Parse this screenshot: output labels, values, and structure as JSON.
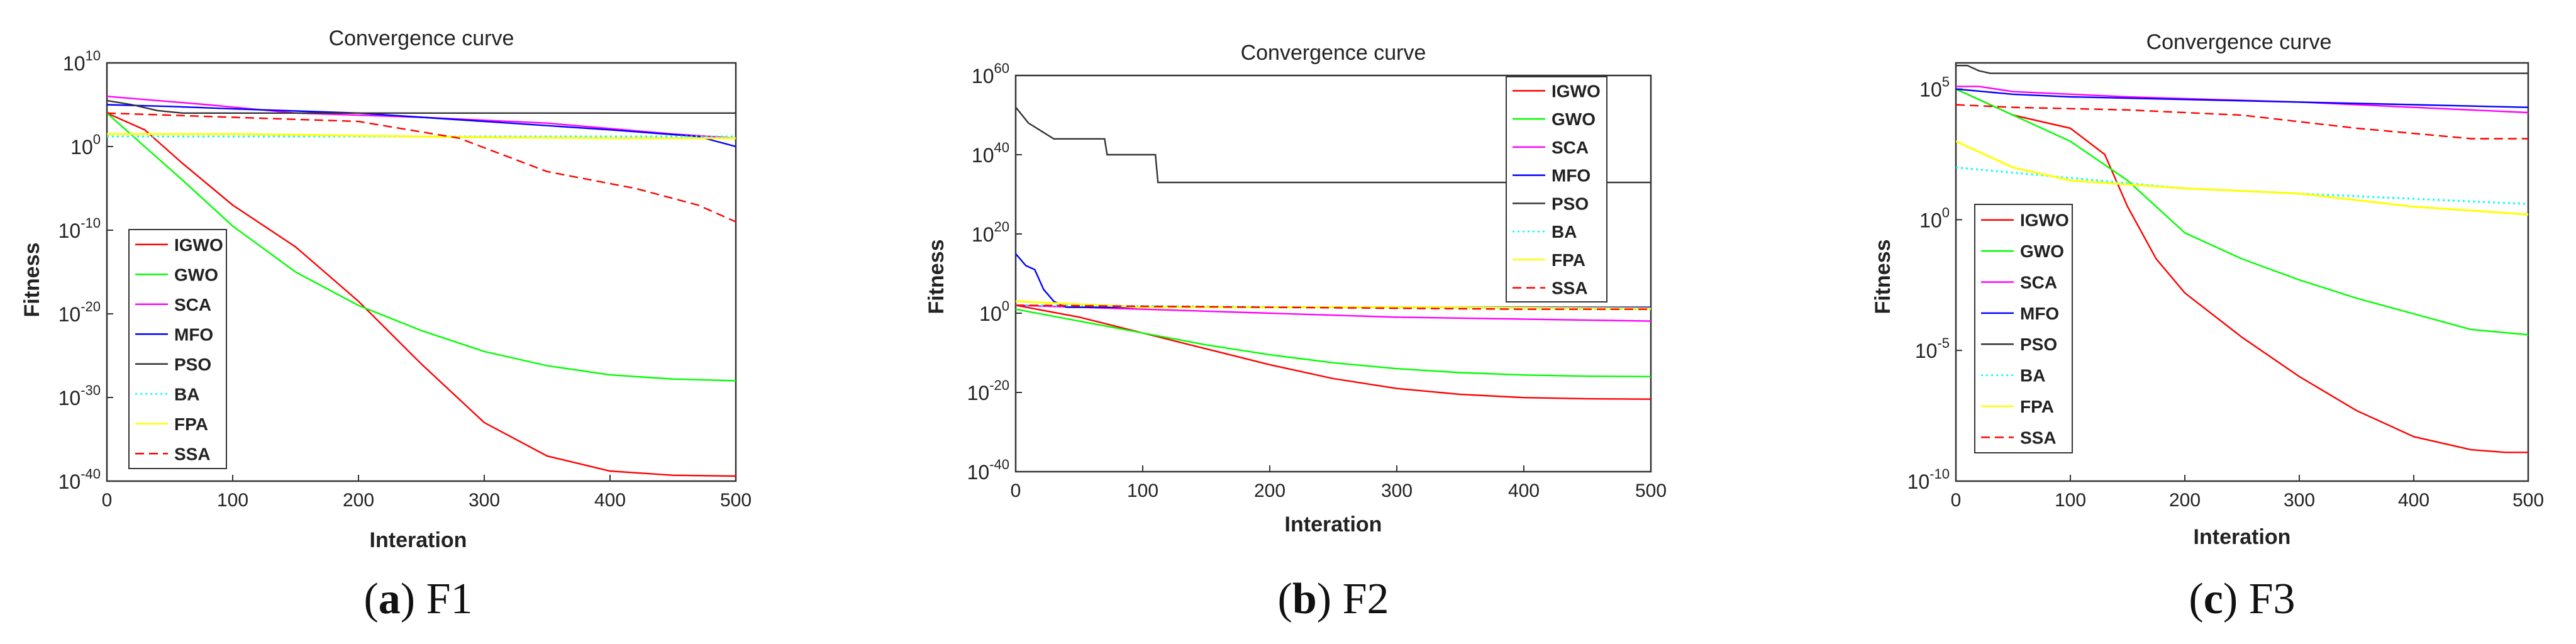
{
  "colors": {
    "IGWO": "#ff0000",
    "GWO": "#00ff00",
    "SCA": "#ff00ff",
    "MFO": "#0000ff",
    "PSO": "#333333",
    "BA": "#00ffff",
    "FPA": "#ffff00",
    "SSA": "#ff0000"
  },
  "chart_data": [
    {
      "type": "line",
      "title": "Convergence curve",
      "xlabel": "Interation",
      "ylabel": "Fitness",
      "yscale": "log",
      "xlim": [
        0,
        500
      ],
      "ylim_exp": [
        -40,
        10
      ],
      "xticks": [
        0,
        100,
        200,
        300,
        400,
        500
      ],
      "yticks_exp": [
        -40,
        -30,
        -20,
        -10,
        0,
        10
      ],
      "caption": {
        "letter": "a",
        "func": "F1"
      },
      "legend": [
        "IGWO",
        "GWO",
        "SCA",
        "MFO",
        "PSO",
        "BA",
        "FPA",
        "SSA"
      ],
      "legend_position": "lower-left",
      "series": [
        {
          "name": "IGWO",
          "style": "solid",
          "points": [
            [
              0,
              4
            ],
            [
              30,
              2
            ],
            [
              60,
              -2
            ],
            [
              100,
              -7
            ],
            [
              150,
              -12
            ],
            [
              200,
              -18.5
            ],
            [
              250,
              -26
            ],
            [
              300,
              -33
            ],
            [
              350,
              -37
            ],
            [
              400,
              -38.8
            ],
            [
              450,
              -39.3
            ],
            [
              500,
              -39.4
            ]
          ]
        },
        {
          "name": "GWO",
          "style": "solid",
          "points": [
            [
              0,
              4
            ],
            [
              30,
              0
            ],
            [
              60,
              -4
            ],
            [
              100,
              -9.5
            ],
            [
              150,
              -15
            ],
            [
              200,
              -19
            ],
            [
              250,
              -22
            ],
            [
              300,
              -24.5
            ],
            [
              350,
              -26.2
            ],
            [
              400,
              -27.3
            ],
            [
              450,
              -27.8
            ],
            [
              500,
              -28
            ]
          ]
        },
        {
          "name": "SCA",
          "style": "solid",
          "points": [
            [
              0,
              6
            ],
            [
              40,
              5.5
            ],
            [
              80,
              5
            ],
            [
              150,
              4
            ],
            [
              250,
              3.5
            ],
            [
              350,
              2.8
            ],
            [
              450,
              1.5
            ],
            [
              500,
              1
            ]
          ]
        },
        {
          "name": "MFO",
          "style": "solid",
          "points": [
            [
              0,
              5
            ],
            [
              50,
              4.8
            ],
            [
              100,
              4.5
            ],
            [
              200,
              4
            ],
            [
              300,
              3
            ],
            [
              400,
              2
            ],
            [
              470,
              1.2
            ],
            [
              500,
              0
            ]
          ]
        },
        {
          "name": "PSO",
          "style": "solid",
          "points": [
            [
              0,
              5.5
            ],
            [
              20,
              5
            ],
            [
              40,
              4.3
            ],
            [
              60,
              4
            ],
            [
              100,
              4
            ],
            [
              500,
              4
            ]
          ]
        },
        {
          "name": "BA",
          "style": "dotted",
          "points": [
            [
              0,
              1.2
            ],
            [
              500,
              1.2
            ]
          ]
        },
        {
          "name": "FPA",
          "style": "solid",
          "points": [
            [
              0,
              1.5
            ],
            [
              100,
              1.5
            ],
            [
              200,
              1.3
            ],
            [
              300,
              1.1
            ],
            [
              400,
              1
            ],
            [
              500,
              1
            ]
          ]
        },
        {
          "name": "SSA",
          "style": "dashed",
          "points": [
            [
              0,
              4
            ],
            [
              100,
              3.5
            ],
            [
              200,
              3
            ],
            [
              280,
              1
            ],
            [
              350,
              -3
            ],
            [
              420,
              -5
            ],
            [
              470,
              -7
            ],
            [
              500,
              -9
            ]
          ]
        }
      ]
    },
    {
      "type": "line",
      "title": "Convergence curve",
      "xlabel": "Interation",
      "ylabel": "Fitness",
      "yscale": "log",
      "xlim": [
        0,
        500
      ],
      "ylim_exp": [
        -40,
        60
      ],
      "xticks": [
        0,
        100,
        200,
        300,
        400,
        500
      ],
      "yticks_exp": [
        -40,
        -20,
        0,
        20,
        40,
        60
      ],
      "caption": {
        "letter": "b",
        "func": "F2"
      },
      "legend": [
        "IGWO",
        "GWO",
        "SCA",
        "MFO",
        "PSO",
        "BA",
        "FPA",
        "SSA"
      ],
      "legend_position": "top-right",
      "series": [
        {
          "name": "IGWO",
          "style": "solid",
          "points": [
            [
              0,
              2
            ],
            [
              50,
              -1
            ],
            [
              100,
              -5
            ],
            [
              150,
              -9
            ],
            [
              200,
              -13
            ],
            [
              250,
              -16.5
            ],
            [
              300,
              -19
            ],
            [
              350,
              -20.5
            ],
            [
              400,
              -21.3
            ],
            [
              450,
              -21.6
            ],
            [
              500,
              -21.7
            ]
          ]
        },
        {
          "name": "GWO",
          "style": "solid",
          "points": [
            [
              0,
              1
            ],
            [
              50,
              -2
            ],
            [
              100,
              -5
            ],
            [
              150,
              -8
            ],
            [
              200,
              -10.5
            ],
            [
              250,
              -12.5
            ],
            [
              300,
              -14
            ],
            [
              350,
              -15
            ],
            [
              400,
              -15.6
            ],
            [
              450,
              -15.9
            ],
            [
              500,
              -16
            ]
          ]
        },
        {
          "name": "SCA",
          "style": "solid",
          "points": [
            [
              0,
              2
            ],
            [
              50,
              1.5
            ],
            [
              100,
              1
            ],
            [
              200,
              0
            ],
            [
              300,
              -1
            ],
            [
              400,
              -1.5
            ],
            [
              500,
              -2
            ]
          ]
        },
        {
          "name": "MFO",
          "style": "solid",
          "points": [
            [
              0,
              15
            ],
            [
              8,
              12
            ],
            [
              15,
              11
            ],
            [
              22,
              6
            ],
            [
              30,
              3
            ],
            [
              40,
              1.5
            ],
            [
              500,
              1.5
            ]
          ]
        },
        {
          "name": "PSO",
          "style": "solid",
          "points": [
            [
              0,
              52
            ],
            [
              5,
              50
            ],
            [
              10,
              48
            ],
            [
              15,
              47
            ],
            [
              20,
              46
            ],
            [
              25,
              45
            ],
            [
              30,
              44
            ],
            [
              70,
              44
            ],
            [
              72,
              40
            ],
            [
              110,
              40
            ],
            [
              112,
              33
            ],
            [
              500,
              33
            ]
          ]
        },
        {
          "name": "BA",
          "style": "dotted",
          "points": [
            [
              0,
              2
            ],
            [
              500,
              1
            ]
          ]
        },
        {
          "name": "FPA",
          "style": "solid",
          "points": [
            [
              0,
              3
            ],
            [
              100,
              1.5
            ],
            [
              300,
              1.5
            ],
            [
              500,
              1.2
            ]
          ]
        },
        {
          "name": "SSA",
          "style": "dashed",
          "points": [
            [
              0,
              2
            ],
            [
              200,
              1.5
            ],
            [
              400,
              1
            ],
            [
              500,
              1
            ]
          ]
        }
      ]
    },
    {
      "type": "line",
      "title": "Convergence curve",
      "xlabel": "Interation",
      "ylabel": "Fitness",
      "yscale": "log",
      "xlim": [
        0,
        500
      ],
      "ylim_exp": [
        -10,
        6
      ],
      "xticks": [
        0,
        100,
        200,
        300,
        400,
        500
      ],
      "yticks_exp": [
        -10,
        -5,
        0,
        5
      ],
      "caption": {
        "letter": "c",
        "func": "F3"
      },
      "legend": [
        "IGWO",
        "GWO",
        "SCA",
        "MFO",
        "PSO",
        "BA",
        "FPA",
        "SSA"
      ],
      "legend_position": "lower-left",
      "series": [
        {
          "name": "IGWO",
          "style": "solid",
          "points": [
            [
              0,
              5
            ],
            [
              50,
              4
            ],
            [
              100,
              3.5
            ],
            [
              130,
              2.5
            ],
            [
              150,
              0.5
            ],
            [
              175,
              -1.5
            ],
            [
              200,
              -2.8
            ],
            [
              250,
              -4.5
            ],
            [
              300,
              -6
            ],
            [
              350,
              -7.3
            ],
            [
              400,
              -8.3
            ],
            [
              450,
              -8.8
            ],
            [
              480,
              -8.9
            ],
            [
              500,
              -8.9
            ]
          ]
        },
        {
          "name": "GWO",
          "style": "solid",
          "points": [
            [
              0,
              5
            ],
            [
              50,
              4
            ],
            [
              100,
              3
            ],
            [
              150,
              1.5
            ],
            [
              200,
              -0.5
            ],
            [
              250,
              -1.5
            ],
            [
              300,
              -2.3
            ],
            [
              350,
              -3
            ],
            [
              400,
              -3.6
            ],
            [
              450,
              -4.2
            ],
            [
              500,
              -4.4
            ]
          ]
        },
        {
          "name": "SCA",
          "style": "solid",
          "points": [
            [
              0,
              5.1
            ],
            [
              20,
              5.1
            ],
            [
              50,
              4.9
            ],
            [
              150,
              4.7
            ],
            [
              300,
              4.5
            ],
            [
              400,
              4.3
            ],
            [
              500,
              4.1
            ]
          ]
        },
        {
          "name": "MFO",
          "style": "solid",
          "points": [
            [
              0,
              5
            ],
            [
              50,
              4.8
            ],
            [
              100,
              4.7
            ],
            [
              200,
              4.6
            ],
            [
              300,
              4.5
            ],
            [
              400,
              4.4
            ],
            [
              500,
              4.3
            ]
          ]
        },
        {
          "name": "PSO",
          "style": "solid",
          "points": [
            [
              0,
              5.9
            ],
            [
              10,
              5.9
            ],
            [
              20,
              5.7
            ],
            [
              30,
              5.6
            ],
            [
              500,
              5.6
            ]
          ]
        },
        {
          "name": "BA",
          "style": "dotted",
          "points": [
            [
              0,
              2
            ],
            [
              100,
              1.6
            ],
            [
              200,
              1.2
            ],
            [
              300,
              1
            ],
            [
              400,
              0.8
            ],
            [
              500,
              0.6
            ]
          ]
        },
        {
          "name": "FPA",
          "style": "solid",
          "points": [
            [
              0,
              3
            ],
            [
              50,
              2
            ],
            [
              100,
              1.5
            ],
            [
              200,
              1.2
            ],
            [
              300,
              1
            ],
            [
              400,
              0.5
            ],
            [
              500,
              0.2
            ]
          ]
        },
        {
          "name": "SSA",
          "style": "dashed",
          "points": [
            [
              0,
              4.4
            ],
            [
              50,
              4.3
            ],
            [
              150,
              4.2
            ],
            [
              250,
              4
            ],
            [
              350,
              3.5
            ],
            [
              450,
              3.1
            ],
            [
              500,
              3.1
            ]
          ]
        }
      ]
    }
  ]
}
